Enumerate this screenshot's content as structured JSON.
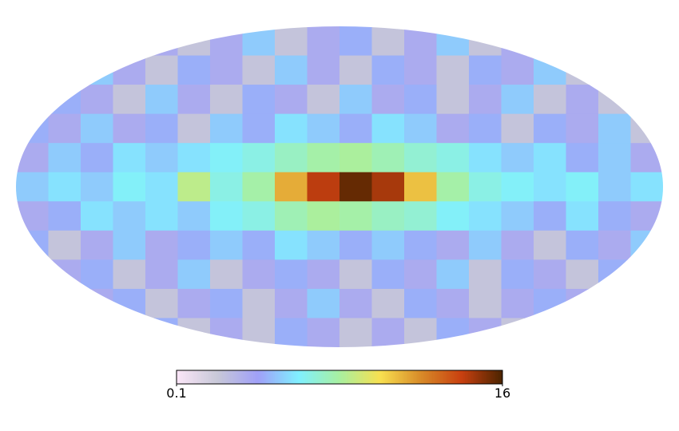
{
  "chart_data": {
    "type": "mollweide",
    "log_scale": true,
    "clim": [
      0.1,
      16
    ],
    "cticks": [
      0.1,
      16
    ],
    "colormap": [
      "#fbe6f8",
      "#c8c8d8",
      "#a0a0f8",
      "#80f0ff",
      "#a8f0a0",
      "#f8e050",
      "#d88a28",
      "#c84010",
      "#4a2400"
    ],
    "values": [
      [
        0.2,
        0.3,
        0.2,
        0.4,
        0.3,
        0.2,
        0.3,
        0.5,
        0.2,
        0.3,
        0.4,
        0.2,
        0.3,
        0.5,
        0.2,
        0.3,
        0.2,
        0.4,
        0.3,
        0.2
      ],
      [
        0.3,
        0.2,
        0.5,
        0.3,
        0.2,
        0.4,
        0.3,
        0.2,
        0.5,
        0.3,
        0.2,
        0.4,
        0.3,
        0.2,
        0.4,
        0.3,
        0.5,
        0.2,
        0.3,
        0.4
      ],
      [
        0.2,
        0.4,
        0.3,
        0.2,
        0.5,
        0.3,
        0.2,
        0.4,
        0.3,
        0.2,
        0.5,
        0.3,
        0.4,
        0.2,
        0.3,
        0.5,
        0.2,
        0.3,
        0.2,
        0.3
      ],
      [
        0.4,
        0.3,
        0.5,
        0.3,
        0.4,
        0.2,
        0.5,
        0.4,
        0.6,
        0.5,
        0.4,
        0.6,
        0.5,
        0.3,
        0.4,
        0.2,
        0.4,
        0.3,
        0.5,
        0.2
      ],
      [
        0.3,
        0.5,
        0.4,
        0.6,
        0.5,
        0.6,
        0.7,
        0.8,
        1.0,
        1.2,
        1.3,
        1.1,
        0.9,
        0.8,
        0.6,
        0.5,
        0.6,
        0.4,
        0.5,
        0.3
      ],
      [
        0.5,
        0.6,
        0.5,
        0.7,
        0.6,
        1.5,
        0.8,
        1.2,
        3.5,
        9.0,
        14.0,
        10.0,
        3.0,
        1.2,
        0.8,
        0.7,
        0.6,
        0.7,
        0.5,
        0.6
      ],
      [
        0.3,
        0.4,
        0.6,
        0.5,
        0.6,
        0.5,
        0.7,
        0.8,
        1.1,
        1.3,
        1.2,
        1.0,
        0.9,
        0.7,
        0.6,
        0.5,
        0.4,
        0.6,
        0.4,
        0.3
      ],
      [
        0.4,
        0.2,
        0.3,
        0.5,
        0.3,
        0.4,
        0.5,
        0.4,
        0.6,
        0.5,
        0.4,
        0.5,
        0.4,
        0.3,
        0.5,
        0.3,
        0.2,
        0.4,
        0.3,
        0.5
      ],
      [
        0.2,
        0.3,
        0.4,
        0.2,
        0.3,
        0.5,
        0.2,
        0.3,
        0.4,
        0.3,
        0.2,
        0.4,
        0.3,
        0.5,
        0.2,
        0.4,
        0.3,
        0.2,
        0.4,
        0.2
      ],
      [
        0.3,
        0.2,
        0.3,
        0.4,
        0.2,
        0.3,
        0.4,
        0.2,
        0.3,
        0.5,
        0.3,
        0.2,
        0.4,
        0.3,
        0.2,
        0.3,
        0.4,
        0.3,
        0.2,
        0.3
      ],
      [
        0.2,
        0.3,
        0.2,
        0.3,
        0.4,
        0.2,
        0.3,
        0.2,
        0.4,
        0.3,
        0.2,
        0.3,
        0.2,
        0.4,
        0.3,
        0.2,
        0.3,
        0.2,
        0.3,
        0.2
      ]
    ]
  }
}
